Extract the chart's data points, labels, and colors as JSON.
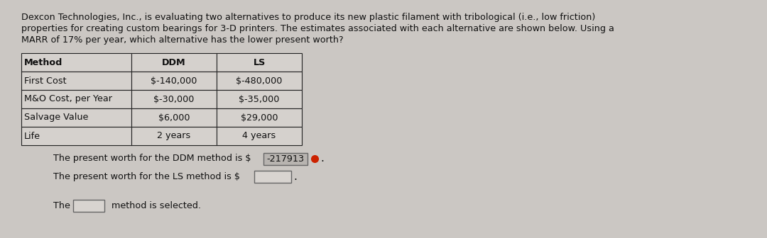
{
  "bg_color": "#cbc7c3",
  "title_text_lines": [
    "Dexcon Technologies, Inc., is evaluating two alternatives to produce its new plastic filament with tribological (i.e., low friction)",
    "properties for creating custom bearings for 3-D printers. The estimates associated with each alternative are shown below. Using a",
    "MARR of 17% per year, which alternative has the lower present worth?"
  ],
  "table_headers": [
    "Method",
    "DDM",
    "LS"
  ],
  "table_rows": [
    [
      "First Cost",
      "$-140,000",
      "$-480,000"
    ],
    [
      "M&O Cost, per Year",
      "$-30,000",
      "$-35,000"
    ],
    [
      "Salvage Value",
      "$6,000",
      "$29,000"
    ],
    [
      "Life",
      "2 years",
      "4 years"
    ]
  ],
  "line1_prefix": "The present worth for the DDM method is $ ",
  "line1_value": "-217913",
  "line2_prefix": "The present worth for the LS method is $",
  "line3_prefix": "The ",
  "line3_suffix": " method is selected.",
  "text_color": "#111111",
  "table_border_color": "#222222",
  "table_cell_color": "#d5d1cd",
  "font_size_title": 9.2,
  "font_size_table": 9.2,
  "font_size_body": 9.2,
  "ddm_value_box_color": "#b8b4b0",
  "ddm_dot_color": "#cc2200",
  "input_box_color": "#d8d4d0"
}
